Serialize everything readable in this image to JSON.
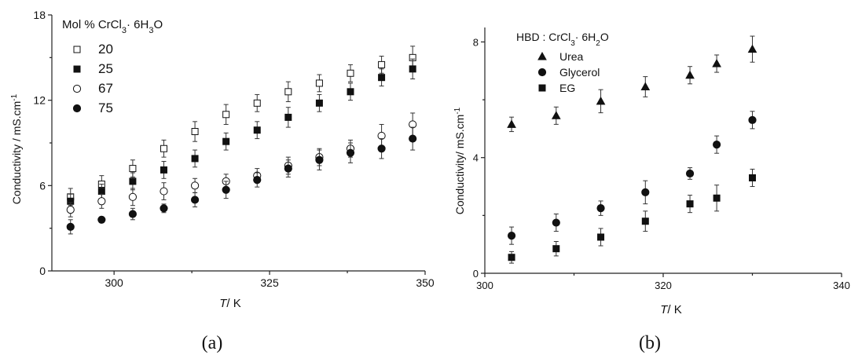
{
  "chart_data": [
    {
      "type": "scatter",
      "caption": "(a)",
      "xlabel": {
        "italic": "T",
        "rest": "/ K"
      },
      "ylabel": "Conductivity / mS.cm",
      "ylabel_sup": "-1",
      "xlim": [
        290,
        350
      ],
      "ylim": [
        0,
        18
      ],
      "xticks": [
        300,
        325,
        350
      ],
      "yticks": [
        0,
        6,
        12,
        18
      ],
      "legend_title": {
        "a": "Mol % CrCl",
        "b": "3",
        "c": "· 6H",
        "d": "3",
        "e": "O"
      },
      "legend_position": "top-left",
      "series": [
        {
          "name": "20",
          "marker": "square-open",
          "x": [
            293,
            298,
            303,
            308,
            313,
            318,
            323,
            328,
            333,
            338,
            343,
            348
          ],
          "y": [
            5.2,
            6.1,
            7.2,
            8.6,
            9.8,
            11.0,
            11.8,
            12.6,
            13.2,
            13.9,
            14.5,
            15.0
          ],
          "err": [
            0.6,
            0.6,
            0.6,
            0.6,
            0.7,
            0.7,
            0.6,
            0.7,
            0.6,
            0.6,
            0.6,
            0.8
          ]
        },
        {
          "name": "25",
          "marker": "square-filled",
          "x": [
            293,
            298,
            303,
            308,
            313,
            318,
            323,
            328,
            333,
            338,
            343,
            348
          ],
          "y": [
            4.9,
            5.6,
            6.3,
            7.1,
            7.9,
            9.1,
            9.9,
            10.8,
            11.8,
            12.6,
            13.6,
            14.2
          ],
          "err": [
            0.5,
            0.5,
            0.6,
            0.6,
            0.6,
            0.6,
            0.6,
            0.7,
            0.6,
            0.6,
            0.6,
            0.7
          ]
        },
        {
          "name": "67",
          "marker": "circle-open",
          "x": [
            293,
            298,
            303,
            308,
            313,
            318,
            323,
            328,
            333,
            338,
            343,
            348
          ],
          "y": [
            4.3,
            4.9,
            5.2,
            5.6,
            6.0,
            6.3,
            6.7,
            7.4,
            8.0,
            8.6,
            9.5,
            10.3
          ],
          "err": [
            0.5,
            0.5,
            0.6,
            0.6,
            0.5,
            0.5,
            0.5,
            0.6,
            0.6,
            0.6,
            0.8,
            0.8
          ]
        },
        {
          "name": "75",
          "marker": "circle-filled",
          "x": [
            293,
            298,
            303,
            308,
            313,
            318,
            323,
            328,
            333,
            338,
            343,
            348
          ],
          "y": [
            3.1,
            3.6,
            4.0,
            4.4,
            5.0,
            5.7,
            6.4,
            7.2,
            7.8,
            8.3,
            8.6,
            9.3
          ],
          "err": [
            0.5,
            0.2,
            0.4,
            0.3,
            0.5,
            0.6,
            0.5,
            0.6,
            0.7,
            0.7,
            0.7,
            0.8
          ]
        }
      ]
    },
    {
      "type": "scatter",
      "caption": "(b)",
      "xlabel": {
        "italic": "T",
        "rest": "/ K"
      },
      "ylabel": "Conductivity/ mS.cm",
      "ylabel_sup": "-1",
      "xlim": [
        300,
        340
      ],
      "ylim": [
        0,
        8.5
      ],
      "xticks": [
        300,
        320,
        340
      ],
      "yticks": [
        0,
        4,
        8
      ],
      "legend_title": {
        "a": "HBD : CrCl",
        "b": "3",
        "c": "· 6H",
        "d": "2",
        "e": "O"
      },
      "legend_position": "top-left",
      "series": [
        {
          "name": "Urea",
          "marker": "triangle-filled",
          "x": [
            303,
            308,
            313,
            318,
            323,
            326,
            330
          ],
          "y": [
            5.15,
            5.45,
            5.95,
            6.45,
            6.85,
            7.25,
            7.75
          ],
          "err": [
            0.25,
            0.3,
            0.4,
            0.35,
            0.3,
            0.3,
            0.45
          ]
        },
        {
          "name": "Glycerol",
          "marker": "circle-filled",
          "x": [
            303,
            308,
            313,
            318,
            323,
            326,
            330
          ],
          "y": [
            1.3,
            1.75,
            2.25,
            2.8,
            3.45,
            4.45,
            5.3
          ],
          "err": [
            0.3,
            0.3,
            0.25,
            0.4,
            0.2,
            0.3,
            0.3
          ]
        },
        {
          "name": "EG",
          "marker": "square-filled",
          "x": [
            303,
            308,
            313,
            318,
            323,
            326,
            330
          ],
          "y": [
            0.55,
            0.85,
            1.25,
            1.8,
            2.4,
            2.6,
            3.3
          ],
          "err": [
            0.2,
            0.25,
            0.3,
            0.35,
            0.3,
            0.45,
            0.3
          ]
        }
      ]
    }
  ]
}
